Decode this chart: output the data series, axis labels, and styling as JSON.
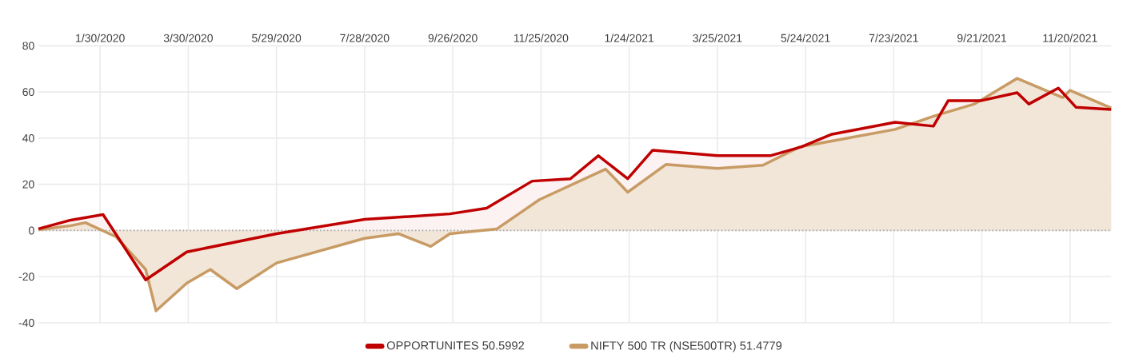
{
  "chart_data": {
    "type": "area",
    "xlim": [
      "2019-12-19",
      "2021-12-18"
    ],
    "ylim": [
      -40,
      80
    ],
    "xticks": [
      {
        "value": "2020-01-30",
        "label": "1/30/2020"
      },
      {
        "value": "2020-03-30",
        "label": "3/30/2020"
      },
      {
        "value": "2020-05-29",
        "label": "5/29/2020"
      },
      {
        "value": "2020-07-28",
        "label": "7/28/2020"
      },
      {
        "value": "2020-09-26",
        "label": "9/26/2020"
      },
      {
        "value": "2020-11-25",
        "label": "11/25/2020"
      },
      {
        "value": "2021-01-24",
        "label": "1/24/2021"
      },
      {
        "value": "2021-03-25",
        "label": "3/25/2021"
      },
      {
        "value": "2021-05-24",
        "label": "5/24/2021"
      },
      {
        "value": "2021-07-23",
        "label": "7/23/2021"
      },
      {
        "value": "2021-09-21",
        "label": "9/21/2021"
      },
      {
        "value": "2021-11-20",
        "label": "11/20/2021"
      }
    ],
    "yticks": [
      -40,
      -20,
      0,
      20,
      40,
      60,
      80
    ],
    "grid": true,
    "legend": "bottom",
    "marker": "none",
    "line_style": "solid",
    "ref_lines": [
      {
        "axis": "y",
        "value": 0,
        "color": "#aaaaaa",
        "line_style": "dotted"
      }
    ],
    "series": [
      {
        "name": "OPPORTUNITES  50.5992",
        "color": "#c00000",
        "x": [
          "2019-12-19",
          "2020-01-10",
          "2020-02-01",
          "2020-03-01",
          "2020-03-29",
          "2020-05-29",
          "2020-07-28",
          "2020-09-24",
          "2020-10-19",
          "2020-11-19",
          "2020-12-15",
          "2021-01-03",
          "2021-01-23",
          "2021-02-09",
          "2021-03-25",
          "2021-04-30",
          "2021-05-21",
          "2021-06-11",
          "2021-07-24",
          "2021-08-19",
          "2021-08-29",
          "2021-09-20",
          "2021-10-15",
          "2021-10-23",
          "2021-11-12",
          "2021-11-24",
          "2021-12-18"
        ],
        "values": [
          0.7,
          4.5,
          6.9,
          -21.4,
          -9.3,
          -1.4,
          4.8,
          7.2,
          9.7,
          21.4,
          22.4,
          32.4,
          22.4,
          34.8,
          32.4,
          32.4,
          36.2,
          41.7,
          46.9,
          45.2,
          56.2,
          56.2,
          59.7,
          54.8,
          61.7,
          53.4,
          52.4
        ]
      },
      {
        "name": "NIFTY 500 TR (NSE500TR) 51.4779",
        "color": "#c89b64",
        "x": [
          "2019-12-19",
          "2020-01-10",
          "2020-01-20",
          "2020-02-10",
          "2020-03-01",
          "2020-03-08",
          "2020-03-29",
          "2020-04-14",
          "2020-05-02",
          "2020-05-29",
          "2020-07-28",
          "2020-08-20",
          "2020-09-11",
          "2020-09-24",
          "2020-10-26",
          "2020-11-24",
          "2021-01-08",
          "2021-01-23",
          "2021-02-18",
          "2021-03-25",
          "2021-04-25",
          "2021-05-20",
          "2021-07-24",
          "2021-08-20",
          "2021-09-16",
          "2021-10-15",
          "2021-11-15",
          "2021-11-20",
          "2021-12-18"
        ],
        "values": [
          0.3,
          2.1,
          3.4,
          -2.8,
          -16.9,
          -34.8,
          -22.8,
          -16.9,
          -25.2,
          -14.1,
          -3.4,
          -1.4,
          -6.9,
          -1.4,
          0.7,
          13.4,
          26.6,
          16.6,
          28.6,
          26.9,
          28.3,
          36.2,
          43.8,
          49.7,
          54.8,
          65.9,
          57.6,
          60.7,
          53.1
        ]
      }
    ]
  }
}
